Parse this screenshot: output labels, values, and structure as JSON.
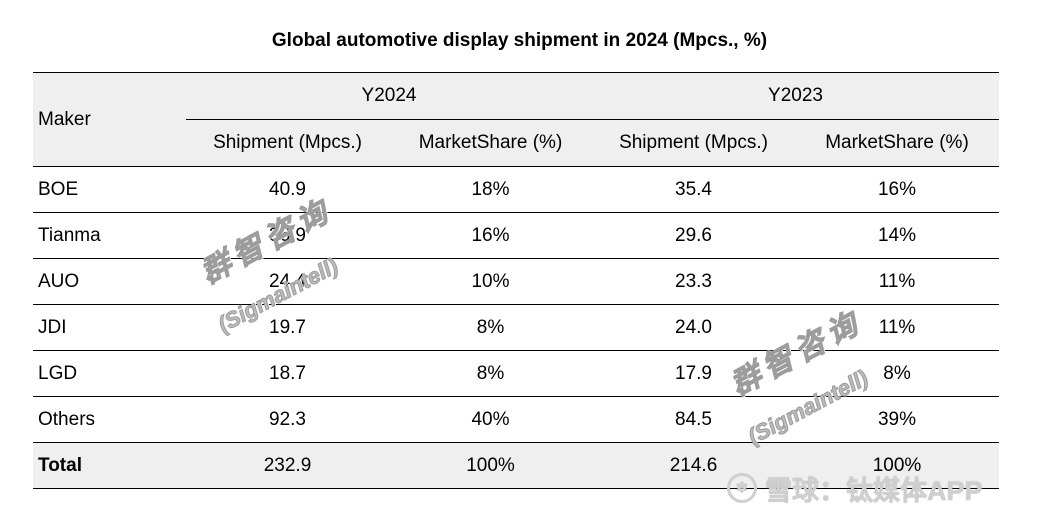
{
  "chart_data": {
    "type": "table",
    "title": "Global automotive display shipment in 2024 (Mpcs., %)",
    "columns": {
      "maker": "Maker",
      "groups": [
        "Y2024",
        "Y2023"
      ],
      "sub": [
        "Shipment (Mpcs.)",
        "MarketShare (%)",
        "Shipment (Mpcs.)",
        "MarketShare (%)"
      ]
    },
    "rows": [
      {
        "maker": "BOE",
        "ship_2024": "40.9",
        "share_2024": "18%",
        "ship_2023": "35.4",
        "share_2023": "16%"
      },
      {
        "maker": "Tianma",
        "ship_2024": "36.9",
        "share_2024": "16%",
        "ship_2023": "29.6",
        "share_2023": "14%"
      },
      {
        "maker": "AUO",
        "ship_2024": "24.4",
        "share_2024": "10%",
        "ship_2023": "23.3",
        "share_2023": "11%"
      },
      {
        "maker": "JDI",
        "ship_2024": "19.7",
        "share_2024": "8%",
        "ship_2023": "24.0",
        "share_2023": "11%"
      },
      {
        "maker": "LGD",
        "ship_2024": "18.7",
        "share_2024": "8%",
        "ship_2023": "17.9",
        "share_2023": "8%"
      },
      {
        "maker": "Others",
        "ship_2024": "92.3",
        "share_2024": "40%",
        "ship_2023": "84.5",
        "share_2023": "39%"
      }
    ],
    "total": {
      "maker": "Total",
      "ship_2024": "232.9",
      "share_2024": "100%",
      "ship_2023": "214.6",
      "share_2023": "100%"
    }
  },
  "watermarks": {
    "cn": "群智咨询",
    "en": "(Sigmaintell)",
    "footer": "雪球：钛媒体APP"
  }
}
